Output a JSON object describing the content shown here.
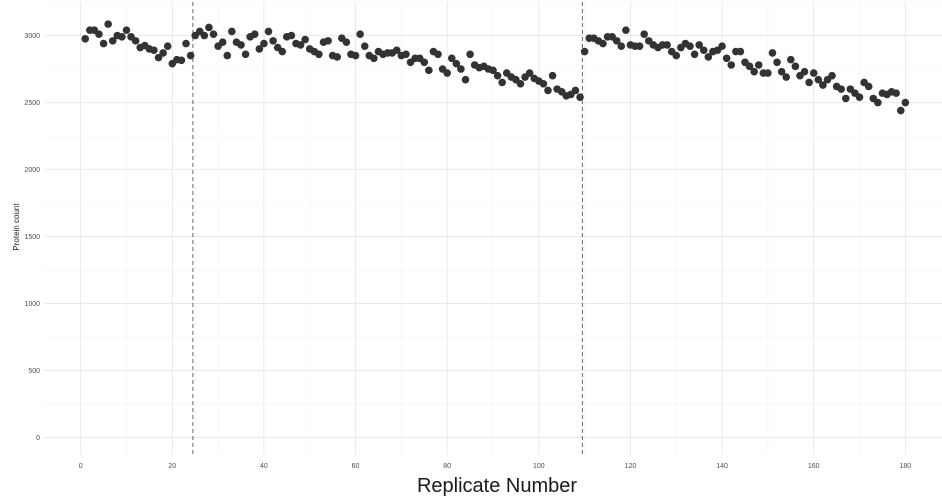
{
  "chart_data": {
    "type": "scatter",
    "title": "",
    "xlabel": "Replicate Number",
    "ylabel": "Protein count",
    "xlim": [
      -8,
      188
    ],
    "ylim": [
      -130,
      3250
    ],
    "x_ticks": [
      0,
      20,
      40,
      60,
      80,
      100,
      120,
      140,
      160,
      180
    ],
    "y_ticks": [
      0,
      500,
      1000,
      1500,
      2000,
      2500,
      3000
    ],
    "grid": true,
    "vlines": [
      24.5,
      109.5
    ],
    "point_color": "#333333",
    "series": [
      {
        "x": [
          1,
          2,
          3,
          4,
          5,
          6,
          7,
          8,
          9,
          10,
          11,
          12,
          13,
          14,
          15,
          16,
          17,
          18,
          19,
          20,
          21,
          22,
          23,
          24,
          25,
          26,
          27,
          28,
          29,
          30,
          31,
          32,
          33,
          34,
          35,
          36,
          37,
          38,
          39,
          40,
          41,
          42,
          43,
          44,
          45,
          46,
          47,
          48,
          49,
          50,
          51,
          52,
          53,
          54,
          55,
          56,
          57,
          58,
          59,
          60,
          61,
          62,
          63,
          64,
          65,
          66,
          67,
          68,
          69,
          70,
          71,
          72,
          73,
          74,
          75,
          76,
          77,
          78,
          79,
          80,
          81,
          82,
          83,
          84,
          85,
          86,
          87,
          88,
          89,
          90,
          91,
          92,
          93,
          94,
          95,
          96,
          97,
          98,
          99,
          100,
          101,
          102,
          103,
          104,
          105,
          106,
          107,
          108,
          109,
          110,
          111,
          112,
          113,
          114,
          115,
          116,
          117,
          118,
          119,
          120,
          121,
          122,
          123,
          124,
          125,
          126,
          127,
          128,
          129,
          130,
          131,
          132,
          133,
          134,
          135,
          136,
          137,
          138,
          139,
          140,
          141,
          142,
          143,
          144,
          145,
          146,
          147,
          148,
          149,
          150,
          151,
          152,
          153,
          154,
          155,
          156,
          157,
          158,
          159,
          160,
          161,
          162,
          163,
          164,
          165,
          166,
          167,
          168,
          169,
          170,
          171,
          172,
          173,
          174,
          175,
          176,
          177,
          178,
          179,
          180
        ],
        "y": [
          2975,
          3040,
          3040,
          3010,
          2940,
          3085,
          2960,
          3000,
          2990,
          3040,
          2990,
          2960,
          2910,
          2925,
          2900,
          2890,
          2835,
          2870,
          2920,
          2790,
          2820,
          2815,
          2940,
          2850,
          3000,
          3030,
          3000,
          3060,
          3010,
          2920,
          2950,
          2850,
          3030,
          2950,
          2930,
          2860,
          2990,
          3010,
          2900,
          2940,
          3030,
          2960,
          2910,
          2880,
          2990,
          3000,
          2940,
          2930,
          2970,
          2900,
          2880,
          2860,
          2950,
          2960,
          2850,
          2840,
          2980,
          2950,
          2860,
          2850,
          3010,
          2920,
          2850,
          2830,
          2880,
          2860,
          2870,
          2870,
          2890,
          2850,
          2860,
          2800,
          2830,
          2830,
          2800,
          2740,
          2880,
          2860,
          2750,
          2720,
          2830,
          2790,
          2750,
          2670,
          2860,
          2780,
          2760,
          2770,
          2750,
          2740,
          2700,
          2650,
          2720,
          2690,
          2670,
          2640,
          2690,
          2720,
          2680,
          2660,
          2640,
          2590,
          2700,
          2600,
          2580,
          2550,
          2560,
          2590,
          2540,
          2880,
          2980,
          2980,
          2960,
          2940,
          2990,
          2990,
          2960,
          2920,
          3040,
          2930,
          2920,
          2920,
          3010,
          2960,
          2930,
          2910,
          2930,
          2930,
          2880,
          2850,
          2910,
          2940,
          2920,
          2860,
          2930,
          2890,
          2840,
          2880,
          2890,
          2920,
          2830,
          2780,
          2880,
          2880,
          2800,
          2770,
          2730,
          2780,
          2720,
          2720,
          2870,
          2800,
          2730,
          2690,
          2820,
          2770,
          2700,
          2730,
          2650,
          2720,
          2670,
          2630,
          2670,
          2700,
          2620,
          2600,
          2530,
          2600,
          2570,
          2540,
          2650,
          2620,
          2530,
          2500,
          2570,
          2560,
          2580,
          2570,
          2440,
          2500
        ]
      }
    ]
  }
}
